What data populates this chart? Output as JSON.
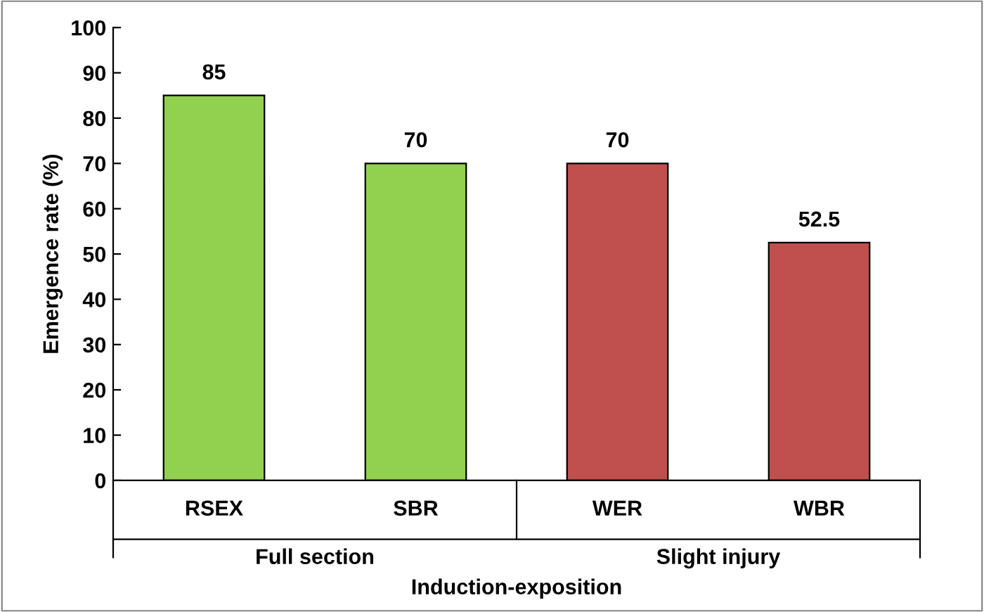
{
  "chart_data": {
    "type": "bar",
    "xlabel": "Induction-exposition",
    "ylabel": "Emergence rate (%)",
    "categories": [
      "RSEX",
      "SBR",
      "WER",
      "WBR"
    ],
    "values": [
      85,
      70,
      70,
      52.5
    ],
    "colors": [
      "#92d050",
      "#92d050",
      "#c0504d",
      "#c0504d"
    ],
    "ylim": [
      0,
      100
    ],
    "yticks": [
      0,
      10,
      20,
      30,
      40,
      50,
      60,
      70,
      80,
      90,
      100
    ],
    "data_labels": true,
    "grid": false,
    "legend": false,
    "annotations": [
      "Full section",
      "Slight injury"
    ]
  }
}
